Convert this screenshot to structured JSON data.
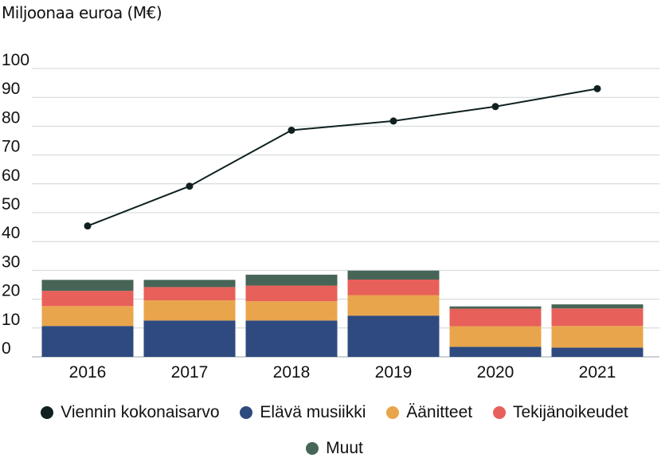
{
  "chart_data": {
    "type": "bar",
    "stacked": true,
    "ylabel": "Miljoonaa euroa (M€)",
    "ylim": [
      0,
      100
    ],
    "yticks": [
      0,
      10,
      20,
      30,
      40,
      50,
      60,
      70,
      80,
      90,
      100
    ],
    "grid": true,
    "legend_position": "bottom",
    "categories": [
      "2016",
      "2017",
      "2018",
      "2019",
      "2020",
      "2021"
    ],
    "series": [
      {
        "name": "Elävä musiikki",
        "kind": "bar",
        "color": "#2e4a7f",
        "values": [
          10.7,
          12.6,
          12.6,
          14.3,
          3.5,
          3.2
        ]
      },
      {
        "name": "Äänitteet",
        "kind": "bar",
        "color": "#e9a54b",
        "values": [
          6.9,
          7.0,
          6.7,
          7.1,
          7.1,
          7.5
        ]
      },
      {
        "name": "Tekijänoikeudet",
        "kind": "bar",
        "color": "#e8605a",
        "values": [
          5.3,
          4.6,
          5.4,
          5.4,
          6.1,
          6.1
        ]
      },
      {
        "name": "Muut",
        "kind": "bar",
        "color": "#476557",
        "values": [
          3.8,
          2.5,
          3.8,
          3.1,
          0.8,
          1.4
        ]
      },
      {
        "name": "Viennin kokonaisarvo",
        "kind": "line",
        "color": "#102020",
        "values": [
          45.4,
          59.2,
          78.6,
          81.8,
          86.8,
          93.0
        ]
      }
    ]
  }
}
